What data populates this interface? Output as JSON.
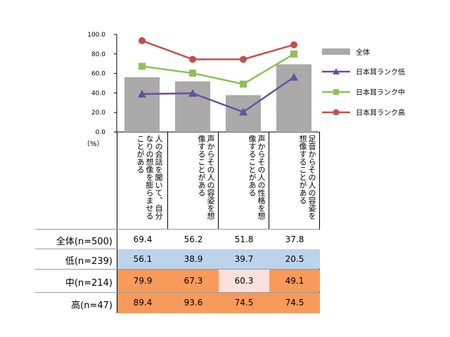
{
  "chart_data": {
    "type": "bar",
    "unit_label": "（%）",
    "ylim": [
      0,
      100
    ],
    "yticks": [
      "100.0",
      "80.0",
      "60.0",
      "40.0",
      "20.0",
      "0.0"
    ],
    "categories": [
      "人の会話を聞いて、自分なりの想像を膨らませることがある",
      "声からその人の容姿を想像することがある",
      "声からその人の性格を想像することがある",
      "足音からその人の容姿を想像することがある"
    ],
    "series": [
      {
        "name": "全体",
        "kind": "bar",
        "color": "#aaaaaa",
        "values": [
          56.2,
          51.8,
          37.8,
          69.4
        ]
      },
      {
        "name": "日本耳ランク低",
        "kind": "line",
        "marker": "triangle",
        "color": "#6a4fa0",
        "values": [
          38.9,
          39.7,
          20.5,
          56.1
        ]
      },
      {
        "name": "日本耳ランク中",
        "kind": "line",
        "marker": "square",
        "color": "#8dc05a",
        "values": [
          67.3,
          60.3,
          49.1,
          79.9
        ]
      },
      {
        "name": "日本耳ランク高",
        "kind": "line",
        "marker": "circle",
        "color": "#c0504d",
        "values": [
          93.6,
          74.5,
          74.5,
          89.4
        ]
      }
    ]
  },
  "table": {
    "rows": [
      {
        "label": "全体(n=500)",
        "cells": [
          "69.4",
          "56.2",
          "51.8",
          "37.8"
        ],
        "colors": [
          "#ffffff",
          "#ffffff",
          "#ffffff",
          "#ffffff"
        ]
      },
      {
        "label": "低(n=239)",
        "cells": [
          "56.1",
          "38.9",
          "39.7",
          "20.5"
        ],
        "colors": [
          "#bcd3ec",
          "#bcd3ec",
          "#bcd3ec",
          "#bcd3ec"
        ]
      },
      {
        "label": "中(n=214)",
        "cells": [
          "79.9",
          "67.3",
          "60.3",
          "49.1"
        ],
        "colors": [
          "#f79a5a",
          "#f79a5a",
          "#fbe0dc",
          "#f79a5a"
        ]
      },
      {
        "label": "高(n=47)",
        "cells": [
          "89.4",
          "93.6",
          "74.5",
          "74.5"
        ],
        "colors": [
          "#f79a5a",
          "#f79a5a",
          "#f79a5a",
          "#f79a5a"
        ]
      }
    ]
  }
}
